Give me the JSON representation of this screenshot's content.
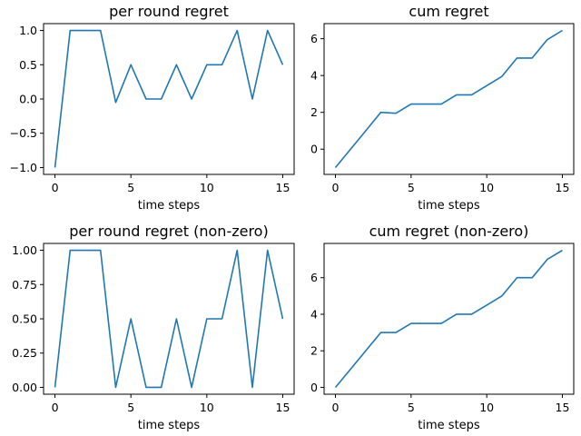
{
  "colors": {
    "series": "#1f77b4",
    "background": "#ffffff",
    "axes": "#000000"
  },
  "chart_data": [
    {
      "type": "line",
      "title": "per round regret",
      "xlabel": "time steps",
      "ylabel": "",
      "grid": false,
      "legend": "none",
      "xlim": [
        -0.75,
        15.75
      ],
      "ylim": [
        -1.1,
        1.1
      ],
      "xticks": [
        0,
        5,
        10,
        15
      ],
      "xtick_labels": [
        "0",
        "5",
        "10",
        "15"
      ],
      "yticks": [
        -1.0,
        -0.5,
        0.0,
        0.5,
        1.0
      ],
      "ytick_labels": [
        "−1.0",
        "−0.5",
        "0.0",
        "0.5",
        "1.0"
      ],
      "series": [
        {
          "x": [
            0,
            1,
            2,
            3,
            4,
            5,
            6,
            7,
            8,
            9,
            10,
            11,
            12,
            13,
            14,
            15
          ],
          "y": [
            -1.0,
            1.0,
            1.0,
            1.0,
            -0.05,
            0.5,
            0.0,
            0.0,
            0.5,
            0.0,
            0.5,
            0.5,
            1.0,
            0.0,
            1.0,
            0.5
          ]
        }
      ]
    },
    {
      "type": "line",
      "title": "cum regret",
      "xlabel": "time steps",
      "ylabel": "",
      "grid": false,
      "legend": "none",
      "xlim": [
        -0.75,
        15.75
      ],
      "ylim": [
        -1.37,
        6.82
      ],
      "xticks": [
        0,
        5,
        10,
        15
      ],
      "xtick_labels": [
        "0",
        "5",
        "10",
        "15"
      ],
      "yticks": [
        0,
        2,
        4,
        6
      ],
      "ytick_labels": [
        "0",
        "2",
        "4",
        "6"
      ],
      "series": [
        {
          "x": [
            0,
            1,
            2,
            3,
            4,
            5,
            6,
            7,
            8,
            9,
            10,
            11,
            12,
            13,
            14,
            15
          ],
          "y": [
            -1.0,
            0.0,
            1.0,
            2.0,
            1.95,
            2.45,
            2.45,
            2.45,
            2.95,
            2.95,
            3.45,
            3.95,
            4.95,
            4.95,
            5.95,
            6.45
          ]
        }
      ]
    },
    {
      "type": "line",
      "title": "per round regret (non-zero)",
      "xlabel": "time steps",
      "ylabel": "",
      "grid": false,
      "legend": "none",
      "xlim": [
        -0.75,
        15.75
      ],
      "ylim": [
        -0.05,
        1.05
      ],
      "xticks": [
        0,
        5,
        10,
        15
      ],
      "xtick_labels": [
        "0",
        "5",
        "10",
        "15"
      ],
      "yticks": [
        0.0,
        0.25,
        0.5,
        0.75,
        1.0
      ],
      "ytick_labels": [
        "0.00",
        "0.25",
        "0.50",
        "0.75",
        "1.00"
      ],
      "series": [
        {
          "x": [
            0,
            1,
            2,
            3,
            4,
            5,
            6,
            7,
            8,
            9,
            10,
            11,
            12,
            13,
            14,
            15
          ],
          "y": [
            0.0,
            1.0,
            1.0,
            1.0,
            0.0,
            0.5,
            0.0,
            0.0,
            0.5,
            0.0,
            0.5,
            0.5,
            1.0,
            0.0,
            1.0,
            0.5
          ]
        }
      ]
    },
    {
      "type": "line",
      "title": "cum regret (non-zero)",
      "xlabel": "time steps",
      "ylabel": "",
      "grid": false,
      "legend": "none",
      "xlim": [
        -0.75,
        15.75
      ],
      "ylim": [
        -0.375,
        7.875
      ],
      "xticks": [
        0,
        5,
        10,
        15
      ],
      "xtick_labels": [
        "0",
        "5",
        "10",
        "15"
      ],
      "yticks": [
        0,
        2,
        4,
        6
      ],
      "ytick_labels": [
        "0",
        "2",
        "4",
        "6"
      ],
      "series": [
        {
          "x": [
            0,
            1,
            2,
            3,
            4,
            5,
            6,
            7,
            8,
            9,
            10,
            11,
            12,
            13,
            14,
            15
          ],
          "y": [
            0,
            1,
            2,
            3,
            3,
            3.5,
            3.5,
            3.5,
            4,
            4,
            4.5,
            5,
            6,
            6,
            7,
            7.5
          ]
        }
      ]
    }
  ]
}
